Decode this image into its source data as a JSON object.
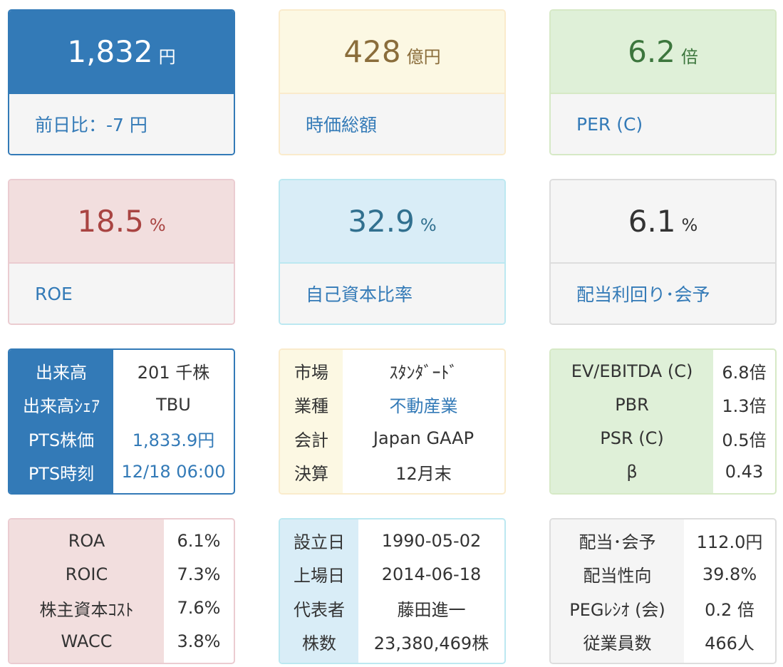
{
  "colors": {
    "primary": "#337ab7",
    "warning_bg": "#fcf8e3",
    "warning_text": "#8a6d3b",
    "success_bg": "#dff0d8",
    "success_text": "#3c763d",
    "danger_bg": "#f2dede",
    "danger_text": "#a94442",
    "info_bg": "#d9edf7",
    "info_text": "#31708f",
    "default_bg": "#f5f5f5"
  },
  "cards": {
    "price": {
      "value": "1,832",
      "unit": "円",
      "label": "前日比：-7 円"
    },
    "market_cap": {
      "value": "428",
      "unit": "億円",
      "label": "時価総額"
    },
    "per": {
      "value": "6.2",
      "unit": "倍",
      "label": "PER (C)"
    },
    "roe": {
      "value": "18.5",
      "unit": "%",
      "label": "ROE"
    },
    "equity_ratio": {
      "value": "32.9",
      "unit": "%",
      "label": "自己資本比率"
    },
    "dividend_yield": {
      "value": "6.1",
      "unit": "%",
      "label": "配当利回り･会予"
    }
  },
  "volume_table": {
    "rows": [
      {
        "label": "出来高",
        "value": "201 千株"
      },
      {
        "label": "出来高ｼｪｱ",
        "value": "TBU"
      },
      {
        "label": "PTS株価",
        "value": "1,833.9円"
      },
      {
        "label": "PTS時刻",
        "value": "12/18 06:00"
      }
    ]
  },
  "market_table": {
    "rows": [
      {
        "label": "市場",
        "value": "ｽﾀﾝﾀﾞｰﾄﾞ"
      },
      {
        "label": "業種",
        "value": "不動産業"
      },
      {
        "label": "会計",
        "value": "Japan GAAP"
      },
      {
        "label": "決算",
        "value": "12月末"
      }
    ]
  },
  "valuation_table": {
    "rows": [
      {
        "label": "EV/EBITDA (C)",
        "value": "6.8倍"
      },
      {
        "label": "PBR",
        "value": "1.3倍"
      },
      {
        "label": "PSR (C)",
        "value": "0.5倍"
      },
      {
        "label": "β",
        "value": "0.43"
      }
    ]
  },
  "returns_table": {
    "rows": [
      {
        "label": "ROA",
        "value": "6.1%"
      },
      {
        "label": "ROIC",
        "value": "7.3%"
      },
      {
        "label": "株主資本ｺｽﾄ",
        "value": "7.6%"
      },
      {
        "label": "WACC",
        "value": "3.8%"
      }
    ]
  },
  "company_table": {
    "rows": [
      {
        "label": "設立日",
        "value": "1990-05-02"
      },
      {
        "label": "上場日",
        "value": "2014-06-18"
      },
      {
        "label": "代表者",
        "value": "藤田進一"
      },
      {
        "label": "株数",
        "value": "23,380,469株"
      }
    ]
  },
  "dividend_table": {
    "rows": [
      {
        "label": "配当･会予",
        "value": "112.0円"
      },
      {
        "label": "配当性向",
        "value": "39.8%"
      },
      {
        "label": "PEGﾚｼｵ (会)",
        "value": "0.2 倍"
      },
      {
        "label": "従業員数",
        "value": "466人"
      }
    ]
  }
}
